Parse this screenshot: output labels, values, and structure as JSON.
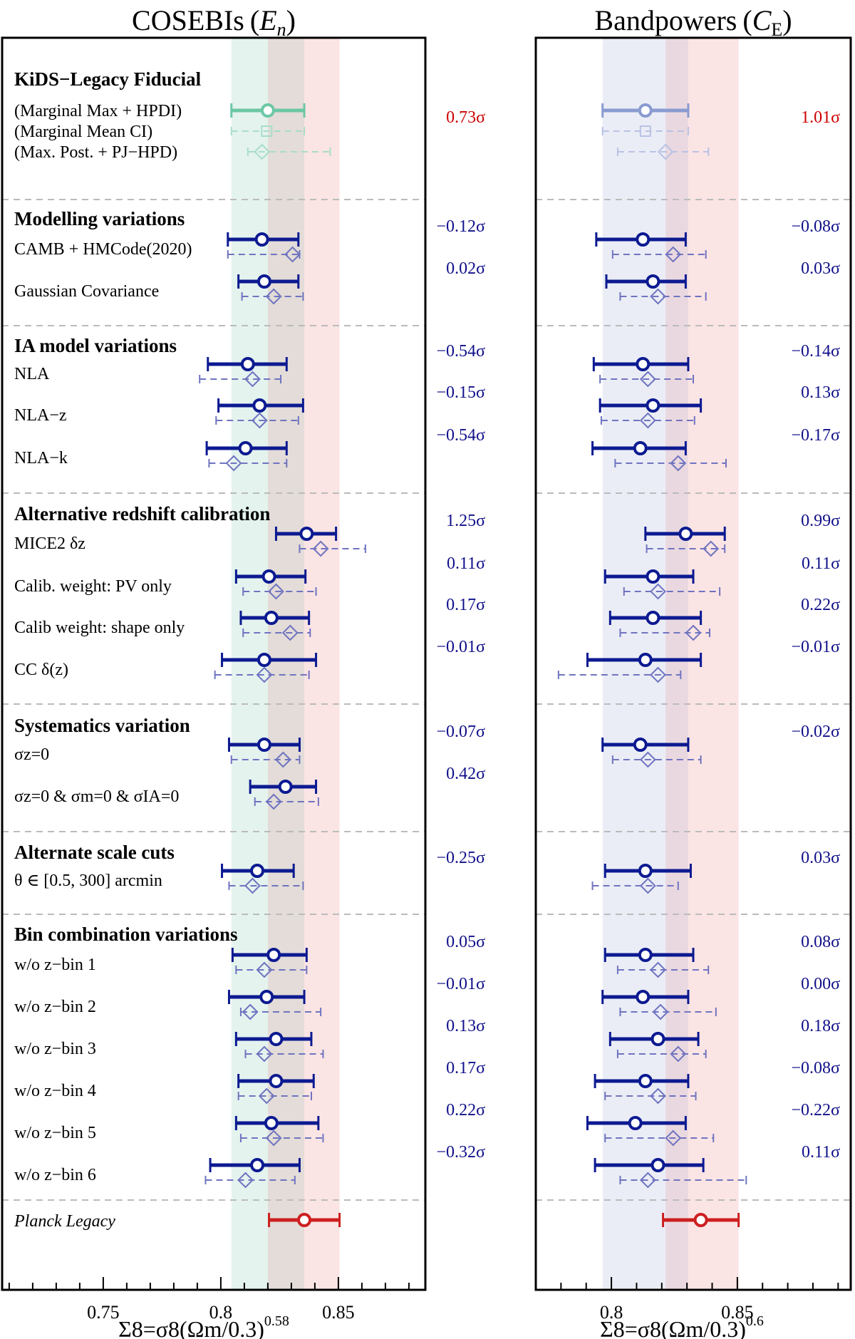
{
  "chart_data": {
    "type": "forest",
    "x_axis": {
      "ticks": [
        0.75,
        0.8,
        0.85
      ],
      "tick_labels": [
        "0.75",
        "0.8",
        "0.85"
      ]
    },
    "panels": [
      {
        "id": "left",
        "title": "COSEBIs (E_n)",
        "title_main": "COSEBIs",
        "title_paren_open": "(",
        "title_var": "E",
        "title_sub": "n",
        "title_paren_close": ")",
        "xlim": [
          0.707,
          0.887
        ],
        "xlabel": "Σ8=σ8(Ωm/0.3)^0.58",
        "xlabel_main": "Σ8=σ8(Ωm/0.3)",
        "xlabel_exp": "0.58",
        "bands": [
          {
            "x0": 0.8045,
            "x1": 0.82,
            "color": "#e4f3ee"
          },
          {
            "x0": 0.82,
            "x1": 0.8355,
            "color": "#e3dcd8"
          },
          {
            "x0": 0.8355,
            "x1": 0.8505,
            "color": "#fbe4e4"
          }
        ]
      },
      {
        "id": "right",
        "title": "Bandpowers (C_E)",
        "title_main": "Bandpowers",
        "title_paren_open": "(",
        "title_var": "C",
        "title_sub": "E",
        "title_paren_close": ")",
        "xlim": [
          0.77,
          0.895
        ],
        "xlabel": "Σ8=σ8(Ωm/0.3)^0.6",
        "xlabel_main": "Σ8=σ8(Ωm/0.3)",
        "xlabel_exp": "0.6",
        "bands": [
          {
            "x0": 0.7965,
            "x1": 0.8215,
            "color": "#ebedf6"
          },
          {
            "x0": 0.8215,
            "x1": 0.8305,
            "color": "#ead8e0"
          },
          {
            "x0": 0.8305,
            "x1": 0.8505,
            "color": "#fbe4e4"
          }
        ]
      }
    ],
    "sections": [
      {
        "name": "fiducial",
        "title": "KiDS−Legacy Fiducial"
      },
      {
        "name": "modelling",
        "title": "Modelling variations"
      },
      {
        "name": "ia",
        "title": "IA model variations"
      },
      {
        "name": "redshift",
        "title": "Alternative redshift calibration"
      },
      {
        "name": "systematics",
        "title": "Systematics variation"
      },
      {
        "name": "scale",
        "title": "Alternate scale cuts"
      },
      {
        "name": "bins",
        "title": "Bin combination variations"
      }
    ],
    "fiducial": [
      {
        "label": "(Marginal Max + HPDI)",
        "left": {
          "lo": 0.8045,
          "c": 0.82,
          "hi": 0.8355
        },
        "right": {
          "lo": 0.7965,
          "c": 0.8135,
          "hi": 0.8305
        }
      },
      {
        "label": "(Marginal Mean CI)",
        "left": {
          "lo": 0.8045,
          "c": 0.8195,
          "hi": 0.8355
        },
        "right": {
          "lo": 0.7965,
          "c": 0.8135,
          "hi": 0.8305
        }
      },
      {
        "label": "(Max. Post. + PJ−HPD)",
        "left": {
          "lo": 0.8115,
          "c": 0.8175,
          "hi": 0.8465
        },
        "right": {
          "lo": 0.8025,
          "c": 0.8215,
          "hi": 0.8385
        }
      }
    ],
    "fiducial_tension": {
      "left": "0.73σ",
      "right": "1.01σ"
    },
    "variations": [
      {
        "section": "modelling",
        "label": "CAMB + HMCode(2020)",
        "left": {
          "lo": 0.803,
          "c": 0.8175,
          "hi": 0.833,
          "dlo": 0.803,
          "dc": 0.8305,
          "dhi": 0.8335,
          "sigma": "−0.12σ"
        },
        "right": {
          "lo": 0.794,
          "c": 0.8125,
          "hi": 0.8295,
          "dlo": 0.8005,
          "dc": 0.8245,
          "dhi": 0.8375,
          "sigma": "−0.08σ"
        }
      },
      {
        "section": "modelling",
        "label": "Gaussian Covariance",
        "left": {
          "lo": 0.8075,
          "c": 0.8185,
          "hi": 0.833,
          "dlo": 0.809,
          "dc": 0.8225,
          "dhi": 0.835,
          "sigma": "0.02σ"
        },
        "right": {
          "lo": 0.798,
          "c": 0.8165,
          "hi": 0.8295,
          "dlo": 0.8035,
          "dc": 0.8185,
          "dhi": 0.8375,
          "sigma": "0.03σ"
        }
      },
      {
        "section": "ia",
        "label": "NLA",
        "left": {
          "lo": 0.7945,
          "c": 0.8115,
          "hi": 0.828,
          "dlo": 0.791,
          "dc": 0.8135,
          "dhi": 0.8255,
          "sigma": "−0.54σ"
        },
        "right": {
          "lo": 0.793,
          "c": 0.8125,
          "hi": 0.8305,
          "dlo": 0.7955,
          "dc": 0.8145,
          "dhi": 0.8325,
          "sigma": "−0.14σ"
        }
      },
      {
        "section": "ia",
        "label": "NLA−z",
        "left": {
          "lo": 0.799,
          "c": 0.8165,
          "hi": 0.835,
          "dlo": 0.798,
          "dc": 0.8165,
          "dhi": 0.833,
          "sigma": "−0.15σ"
        },
        "right": {
          "lo": 0.7955,
          "c": 0.8165,
          "hi": 0.8355,
          "dlo": 0.796,
          "dc": 0.8145,
          "dhi": 0.833,
          "sigma": "0.13σ"
        }
      },
      {
        "section": "ia",
        "label": "NLA−k",
        "left": {
          "lo": 0.794,
          "c": 0.8105,
          "hi": 0.828,
          "dlo": 0.795,
          "dc": 0.8055,
          "dhi": 0.828,
          "sigma": "−0.54σ"
        },
        "right": {
          "lo": 0.7925,
          "c": 0.8115,
          "hi": 0.8295,
          "dlo": 0.8015,
          "dc": 0.8265,
          "dhi": 0.8455,
          "sigma": "−0.17σ"
        }
      },
      {
        "section": "redshift",
        "label": "MICE2 δz",
        "left": {
          "lo": 0.8235,
          "c": 0.8365,
          "hi": 0.849,
          "dlo": 0.8335,
          "dc": 0.8425,
          "dhi": 0.8615,
          "sigma": "1.25σ"
        },
        "right": {
          "lo": 0.8135,
          "c": 0.8295,
          "hi": 0.845,
          "dlo": 0.814,
          "dc": 0.8395,
          "dhi": 0.845,
          "sigma": "0.99σ"
        }
      },
      {
        "section": "redshift",
        "label": "Calib. weight: PV only",
        "left": {
          "lo": 0.8065,
          "c": 0.8205,
          "hi": 0.836,
          "dlo": 0.8095,
          "dc": 0.8235,
          "dhi": 0.8405,
          "sigma": "0.11σ"
        },
        "right": {
          "lo": 0.7975,
          "c": 0.8165,
          "hi": 0.8325,
          "dlo": 0.805,
          "dc": 0.8185,
          "dhi": 0.843,
          "sigma": "0.11σ"
        }
      },
      {
        "section": "redshift",
        "label": "Calib weight: shape only",
        "left": {
          "lo": 0.8085,
          "c": 0.8215,
          "hi": 0.8375,
          "dlo": 0.8095,
          "dc": 0.8295,
          "dhi": 0.838,
          "sigma": "0.17σ"
        },
        "right": {
          "lo": 0.7995,
          "c": 0.8165,
          "hi": 0.8355,
          "dlo": 0.8035,
          "dc": 0.8325,
          "dhi": 0.839,
          "sigma": "0.22σ"
        }
      },
      {
        "section": "redshift",
        "label": "CC δ(z)",
        "left": {
          "lo": 0.8005,
          "c": 0.8185,
          "hi": 0.8405,
          "dlo": 0.7975,
          "dc": 0.8185,
          "dhi": 0.8375,
          "sigma": "−0.01σ"
        },
        "right": {
          "lo": 0.7905,
          "c": 0.8135,
          "hi": 0.8355,
          "dlo": 0.779,
          "dc": 0.8185,
          "dhi": 0.8275,
          "sigma": "−0.01σ"
        }
      },
      {
        "section": "systematics",
        "label": "σz=0",
        "left": {
          "lo": 0.8035,
          "c": 0.8185,
          "hi": 0.8335,
          "dlo": 0.8045,
          "dc": 0.8265,
          "dhi": 0.8335,
          "sigma": "−0.07σ"
        },
        "right": {
          "lo": 0.7965,
          "c": 0.8115,
          "hi": 0.8305,
          "dlo": 0.8005,
          "dc": 0.8145,
          "dhi": 0.8355,
          "sigma": "−0.02σ"
        }
      },
      {
        "section": "systematics",
        "label": "σz=0 & σm=0 & σIA=0",
        "left": {
          "lo": 0.8125,
          "c": 0.8275,
          "hi": 0.8405,
          "dlo": 0.8145,
          "dc": 0.8225,
          "dhi": 0.8415,
          "sigma": "0.42σ"
        },
        "right": null
      },
      {
        "section": "scale",
        "label": "θ ∈ [0.5, 300] arcmin",
        "left": {
          "lo": 0.8005,
          "c": 0.8155,
          "hi": 0.831,
          "dlo": 0.8035,
          "dc": 0.8135,
          "dhi": 0.835,
          "sigma": "−0.25σ"
        },
        "right": {
          "lo": 0.7975,
          "c": 0.8135,
          "hi": 0.8315,
          "dlo": 0.7925,
          "dc": 0.8145,
          "dhi": 0.8265,
          "sigma": "0.03σ"
        }
      },
      {
        "section": "bins",
        "label": "w/o z−bin 1",
        "left": {
          "lo": 0.805,
          "c": 0.8225,
          "hi": 0.8365,
          "dlo": 0.8065,
          "dc": 0.8185,
          "dhi": 0.8365,
          "sigma": "0.05σ"
        },
        "right": {
          "lo": 0.7975,
          "c": 0.8135,
          "hi": 0.8325,
          "dlo": 0.8025,
          "dc": 0.8185,
          "dhi": 0.8385,
          "sigma": "0.08σ"
        }
      },
      {
        "section": "bins",
        "label": "w/o z−bin 2",
        "left": {
          "lo": 0.8035,
          "c": 0.8195,
          "hi": 0.8355,
          "dlo": 0.8085,
          "dc": 0.8125,
          "dhi": 0.8425,
          "sigma": "−0.01σ"
        },
        "right": {
          "lo": 0.7965,
          "c": 0.8125,
          "hi": 0.8305,
          "dlo": 0.8035,
          "dc": 0.8195,
          "dhi": 0.8415,
          "sigma": "0.00σ"
        }
      },
      {
        "section": "bins",
        "label": "w/o z−bin 3",
        "left": {
          "lo": 0.8065,
          "c": 0.8235,
          "hi": 0.8385,
          "dlo": 0.8105,
          "dc": 0.8185,
          "dhi": 0.8435,
          "sigma": "0.13σ"
        },
        "right": {
          "lo": 0.7995,
          "c": 0.8185,
          "hi": 0.8345,
          "dlo": 0.8025,
          "dc": 0.8265,
          "dhi": 0.8375,
          "sigma": "0.18σ"
        }
      },
      {
        "section": "bins",
        "label": "w/o z−bin 4",
        "left": {
          "lo": 0.8075,
          "c": 0.8235,
          "hi": 0.8395,
          "dlo": 0.8075,
          "dc": 0.8195,
          "dhi": 0.8385,
          "sigma": "0.17σ"
        },
        "right": {
          "lo": 0.7935,
          "c": 0.8135,
          "hi": 0.8305,
          "dlo": 0.7975,
          "dc": 0.8185,
          "dhi": 0.8335,
          "sigma": "−0.08σ"
        }
      },
      {
        "section": "bins",
        "label": "w/o z−bin 5",
        "left": {
          "lo": 0.8065,
          "c": 0.8215,
          "hi": 0.8415,
          "dlo": 0.8085,
          "dc": 0.8225,
          "dhi": 0.8435,
          "sigma": "0.22σ"
        },
        "right": {
          "lo": 0.7905,
          "c": 0.8095,
          "hi": 0.8295,
          "dlo": 0.7975,
          "dc": 0.8245,
          "dhi": 0.8405,
          "sigma": "−0.22σ"
        }
      },
      {
        "section": "bins",
        "label": "w/o z−bin 6",
        "left": {
          "lo": 0.7955,
          "c": 0.8155,
          "hi": 0.8335,
          "dlo": 0.7935,
          "dc": 0.8105,
          "dhi": 0.8315,
          "sigma": "−0.32σ"
        },
        "right": {
          "lo": 0.7935,
          "c": 0.8185,
          "hi": 0.8365,
          "dlo": 0.8035,
          "dc": 0.8145,
          "dhi": 0.8535,
          "sigma": "0.11σ"
        }
      }
    ],
    "planck": {
      "label": "Planck Legacy",
      "left": {
        "lo": 0.8205,
        "c": 0.8355,
        "hi": 0.8505
      },
      "right": {
        "lo": 0.8205,
        "c": 0.8355,
        "hi": 0.8505
      }
    }
  }
}
